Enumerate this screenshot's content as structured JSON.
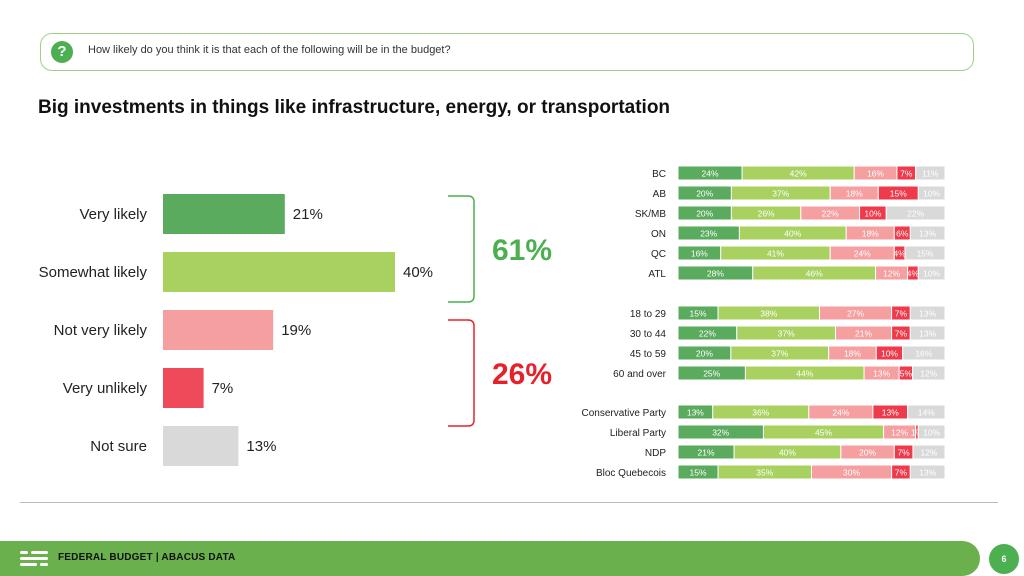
{
  "question": {
    "icon": "question-icon",
    "text": "How likely do you think it is that each of the following will be in the budget?"
  },
  "headline": "Big investments in things like infrastructure, energy, or transportation",
  "chart_data": [
    {
      "type": "bar",
      "orientation": "horizontal",
      "categories": [
        "Very likely",
        "Somewhat likely",
        "Not very likely",
        "Very unlikely",
        "Not sure"
      ],
      "values": [
        21,
        40,
        19,
        7,
        13
      ],
      "labels": [
        "21%",
        "40%",
        "19%",
        "7%",
        "13%"
      ],
      "colors": [
        "#5aab5e",
        "#a8d160",
        "#f59fa1",
        "#ee4a5a",
        "#d9d9d9"
      ],
      "groups": [
        {
          "label": "61%",
          "members": [
            "Very likely",
            "Somewhat likely"
          ],
          "color": "#4caf50"
        },
        {
          "label": "26%",
          "members": [
            "Not very likely",
            "Very unlikely"
          ],
          "color": "#e8202a"
        }
      ],
      "xlim": [
        0,
        100
      ],
      "grid": false
    },
    {
      "type": "bar",
      "orientation": "horizontal",
      "stacked": true,
      "percent": true,
      "series_colors": [
        "#5aab5e",
        "#a8d160",
        "#f59fa1",
        "#ee3a4a",
        "#d9d9d9"
      ],
      "categories": [
        "BC",
        "AB",
        "SK/MB",
        "ON",
        "QC",
        "ATL",
        "18 to 29",
        "30 to 44",
        "45 to 59",
        "60 and over",
        "Conservative Party",
        "Liberal Party",
        "NDP",
        "Bloc Quebecois"
      ],
      "category_groups": [
        [
          "BC",
          "AB",
          "SK/MB",
          "ON",
          "QC",
          "ATL"
        ],
        [
          "18 to 29",
          "30 to 44",
          "45 to 59",
          "60 and over"
        ],
        [
          "Conservative Party",
          "Liberal Party",
          "NDP",
          "Bloc Quebecois"
        ]
      ],
      "rows": [
        [
          24,
          42,
          16,
          7,
          11
        ],
        [
          20,
          37,
          18,
          15,
          10
        ],
        [
          20,
          26,
          22,
          10,
          22
        ],
        [
          23,
          40,
          18,
          6,
          13
        ],
        [
          16,
          41,
          24,
          4,
          15
        ],
        [
          28,
          46,
          12,
          4,
          10
        ],
        [
          15,
          38,
          27,
          7,
          13
        ],
        [
          22,
          37,
          21,
          7,
          13
        ],
        [
          20,
          37,
          18,
          10,
          16
        ],
        [
          25,
          44,
          13,
          5,
          12
        ],
        [
          13,
          36,
          24,
          13,
          14
        ],
        [
          32,
          45,
          12,
          1,
          10
        ],
        [
          21,
          40,
          20,
          7,
          12
        ],
        [
          15,
          35,
          30,
          7,
          13
        ]
      ],
      "labels": [
        [
          "24%",
          "42%",
          "16%",
          "7%",
          "11%"
        ],
        [
          "20%",
          "37%",
          "18%",
          "15%",
          "10%"
        ],
        [
          "20%",
          "26%",
          "22%",
          "10%",
          "22%"
        ],
        [
          "23%",
          "40%",
          "18%",
          "6%",
          "13%"
        ],
        [
          "16%",
          "41%",
          "24%",
          "4%",
          "15%"
        ],
        [
          "28%",
          "46%",
          "12%",
          "4%",
          "10%"
        ],
        [
          "15%",
          "38%",
          "27%",
          "7%",
          "13%"
        ],
        [
          "22%",
          "37%",
          "21%",
          "7%",
          "13%"
        ],
        [
          "20%",
          "37%",
          "18%",
          "10%",
          "16%"
        ],
        [
          "25%",
          "44%",
          "13%",
          "5%",
          "12%"
        ],
        [
          "13%",
          "36%",
          "24%",
          "13%",
          "14%"
        ],
        [
          "32%",
          "45%",
          "12%",
          "1%",
          "10%"
        ],
        [
          "21%",
          "40%",
          "20%",
          "7%",
          "12%"
        ],
        [
          "15%",
          "35%",
          "30%",
          "7%",
          "13%"
        ]
      ]
    }
  ],
  "footer": {
    "logo": "abacus-logo",
    "text": "FEDERAL BUDGET | ABACUS DATA",
    "page_number": "6",
    "color": "#6ab04c"
  }
}
